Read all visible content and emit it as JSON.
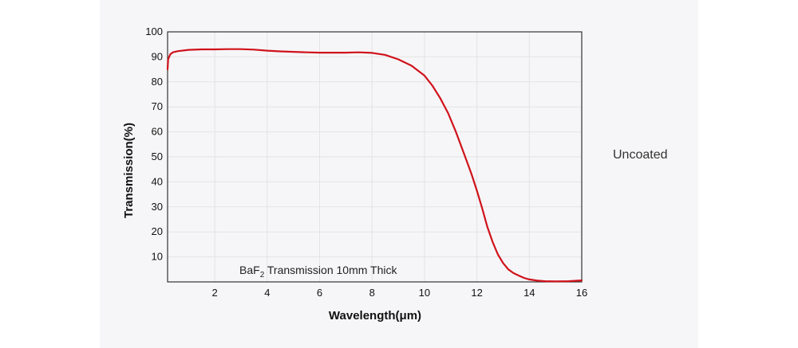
{
  "side_label": "Uncoated",
  "chart_data": {
    "type": "line",
    "title": "",
    "annotation": {
      "prefix": "BaF",
      "subscript": "2",
      "suffix": " Transmission 10mm Thick"
    },
    "xlabel": "Wavelength(μm)",
    "ylabel": "Transmission(%)",
    "xlim": [
      0.2,
      16
    ],
    "ylim": [
      0,
      100
    ],
    "xticks": [
      2,
      4,
      6,
      8,
      10,
      12,
      14,
      16
    ],
    "yticks": [
      10,
      20,
      30,
      40,
      50,
      60,
      70,
      80,
      90,
      100
    ],
    "grid": true,
    "series": [
      {
        "name": "BaF2 10mm",
        "color": "#d0121b",
        "x": [
          0.2,
          0.22,
          0.3,
          0.4,
          0.6,
          1.0,
          1.5,
          2.0,
          2.5,
          3.0,
          3.5,
          4.0,
          4.5,
          5.0,
          5.5,
          6.0,
          6.5,
          7.0,
          7.5,
          8.0,
          8.5,
          9.0,
          9.5,
          10.0,
          10.3,
          10.6,
          10.9,
          11.2,
          11.5,
          11.8,
          12.0,
          12.2,
          12.4,
          12.6,
          12.8,
          13.0,
          13.2,
          13.4,
          13.6,
          13.8,
          14.0,
          14.3,
          14.6,
          15.0,
          15.5,
          16.0
        ],
        "y": [
          85,
          89,
          91,
          91.8,
          92.3,
          92.8,
          93.0,
          93.0,
          93.1,
          93.1,
          92.9,
          92.5,
          92.2,
          92.0,
          91.8,
          91.7,
          91.7,
          91.7,
          91.8,
          91.6,
          90.8,
          89.0,
          86.5,
          82.5,
          78.5,
          73.5,
          67.5,
          60.0,
          51.5,
          43.0,
          36.5,
          29.5,
          22.0,
          16.0,
          11.0,
          7.5,
          5.0,
          3.5,
          2.5,
          1.6,
          1.0,
          0.5,
          0.3,
          0.2,
          0.3,
          0.6
        ]
      }
    ]
  }
}
